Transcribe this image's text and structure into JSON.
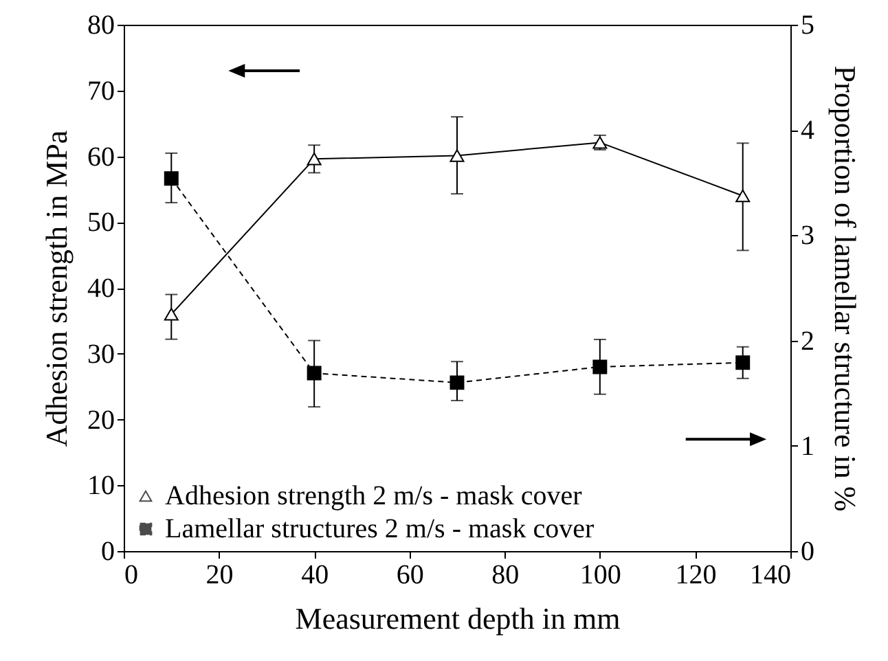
{
  "chart_data": {
    "type": "line",
    "xlabel": "Measurement depth in mm",
    "ylabel": "Adhesion strength in MPa",
    "y2label": "Proportion of lamellar structure in %",
    "x": [
      10,
      40,
      70,
      100,
      130
    ],
    "series": [
      {
        "name": "Adhesion strength 2 m/s - mask cover",
        "color": "#000000",
        "marker": "triangle",
        "line_style": "solid",
        "values": [
          36,
          59.6,
          60.1,
          62.1,
          54
        ],
        "errors": [
          [
            32.2,
            39
          ],
          [
            57.5,
            61.7
          ],
          [
            54.3,
            66
          ],
          [
            61,
            63.2
          ],
          [
            45.7,
            62
          ]
        ]
      },
      {
        "name": "Lamellar structures 2 m/s - mask cover",
        "color": "#000000",
        "marker": "square",
        "line_style": "dashed",
        "axis": "y2",
        "values": [
          3.54,
          1.69,
          1.6,
          1.75,
          1.79
        ],
        "errors": [
          [
            3.31,
            3.78
          ],
          [
            1.37,
            2.0
          ],
          [
            1.43,
            1.8
          ],
          [
            1.49,
            2.01
          ],
          [
            1.64,
            1.94
          ]
        ]
      }
    ],
    "xlim": [
      0,
      140
    ],
    "xticks": [
      0,
      20,
      40,
      60,
      80,
      100,
      120,
      140
    ],
    "ylim": [
      0,
      80
    ],
    "yticks": [
      0,
      10,
      20,
      30,
      40,
      50,
      60,
      70,
      80
    ],
    "y2lim": [
      0,
      5
    ],
    "y2ticks": [
      0,
      1,
      2,
      3,
      4,
      5
    ],
    "legend": "bottom left",
    "grid": false
  }
}
